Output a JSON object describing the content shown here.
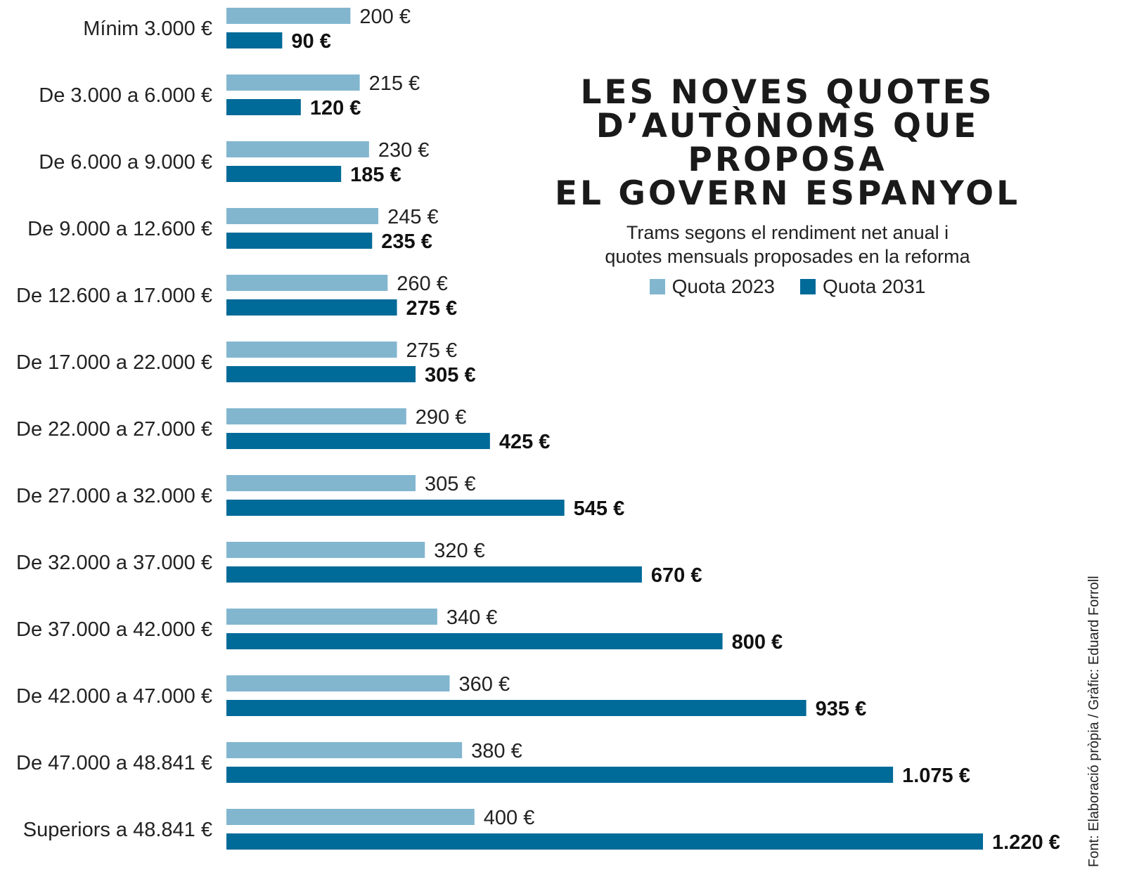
{
  "colors": {
    "quota_2023": "#82b6cf",
    "quota_2031": "#006a98"
  },
  "title": {
    "line1": "LES NOVES QUOTES",
    "line2": "D’AUTÒNOMS QUE PROPOSA",
    "line3": "EL GOVERN ESPANYOL"
  },
  "subtitle": {
    "line1": "Trams segons el rendiment net anual i",
    "line2": "quotes mensuals proposades en la reforma"
  },
  "legend": {
    "quota_2023": "Quota 2023",
    "quota_2031": "Quota 2031"
  },
  "source": "Font: Elaboració pròpia / Gràfic: Eduard Forroll",
  "chart_data": {
    "type": "bar",
    "orientation": "horizontal",
    "categories": [
      "Mínim 3.000 €",
      "De 3.000 a 6.000 €",
      "De 6.000 a 9.000 €",
      "De 9.000 a 12.600 €",
      "De 12.600 a 17.000 €",
      "De 17.000 a 22.000 €",
      "De 22.000 a 27.000 €",
      "De 27.000 a 32.000 €",
      "De 32.000 a 37.000 €",
      "De 37.000 a 42.000 €",
      "De 42.000 a 47.000 €",
      "De 47.000 a 48.841 €",
      "Superiors a 48.841 €"
    ],
    "series": [
      {
        "name": "Quota 2023",
        "values": [
          200,
          215,
          230,
          245,
          260,
          275,
          290,
          305,
          320,
          340,
          360,
          380,
          400
        ],
        "labels": [
          "200 €",
          "215 €",
          "230 €",
          "245 €",
          "260 €",
          "275 €",
          "290 €",
          "305 €",
          "320 €",
          "340 €",
          "360 €",
          "380 €",
          "400 €"
        ]
      },
      {
        "name": "Quota 2031",
        "values": [
          90,
          120,
          185,
          235,
          275,
          305,
          425,
          545,
          670,
          800,
          935,
          1075,
          1220
        ],
        "labels": [
          "90 €",
          "120 €",
          "185 €",
          "235 €",
          "275 €",
          "305 €",
          "425 €",
          "545 €",
          "670 €",
          "800 €",
          "935 €",
          "1.075 €",
          "1.220 €"
        ]
      }
    ],
    "xlim": [
      0,
      1220
    ],
    "grid": false,
    "legend_position": "top-right"
  }
}
